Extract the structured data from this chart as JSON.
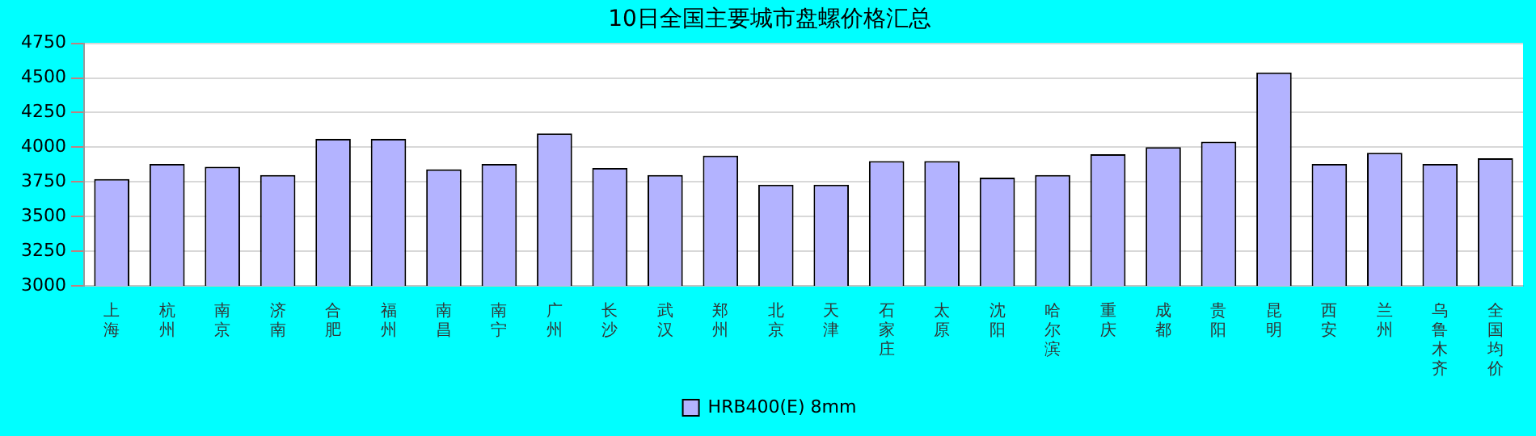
{
  "chart_data": {
    "type": "bar",
    "title": "10日全国主要城市盘螺价格汇总",
    "categories": [
      "上海",
      "杭州",
      "南京",
      "济南",
      "合肥",
      "福州",
      "南昌",
      "南宁",
      "广州",
      "长沙",
      "武汉",
      "郑州",
      "北京",
      "天津",
      "石家庄",
      "太原",
      "沈阳",
      "哈尔滨",
      "重庆",
      "成都",
      "贵阳",
      "昆明",
      "西安",
      "兰州",
      "乌鲁木齐",
      "全国均价"
    ],
    "series": [
      {
        "name": "HRB400(E) 8mm",
        "color": "#b3b3ff",
        "values": [
          3770,
          3880,
          3860,
          3800,
          4060,
          4060,
          3840,
          3880,
          4100,
          3850,
          3800,
          3940,
          3730,
          3730,
          3900,
          3900,
          3780,
          3800,
          3950,
          4000,
          4040,
          4540,
          3880,
          3960,
          3880,
          3920
        ]
      }
    ],
    "ylim": [
      3000,
      4750
    ],
    "yticks": [
      3000,
      3250,
      3500,
      3750,
      4000,
      4250,
      4500,
      4750
    ],
    "grid": "y",
    "legend": "bottom"
  }
}
